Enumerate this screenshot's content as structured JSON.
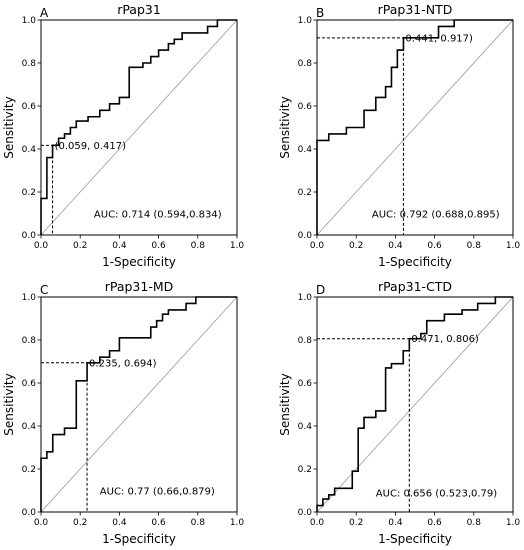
{
  "chart_data": [
    {
      "type": "line",
      "panel": "A",
      "title": "rPap31",
      "xlabel": "1-Specificity",
      "ylabel": "Sensitivity",
      "xlim": [
        0,
        1
      ],
      "ylim": [
        0,
        1
      ],
      "ticks": [
        "0.0",
        "0.2",
        "0.4",
        "0.6",
        "0.8",
        "1.0"
      ],
      "cutoff": {
        "x": 0.059,
        "y": 0.417,
        "label": "(0.059, 0.417)"
      },
      "auc_label": "AUC: 0.714 (0.594,0.834)",
      "series": [
        {
          "x": [
            0,
            0,
            0.03,
            0.03,
            0.059,
            0.059,
            0.09,
            0.09,
            0.12,
            0.12,
            0.15,
            0.15,
            0.18,
            0.18,
            0.24,
            0.24,
            0.3,
            0.3,
            0.35,
            0.35,
            0.4,
            0.4,
            0.45,
            0.45,
            0.52,
            0.52,
            0.56,
            0.56,
            0.6,
            0.6,
            0.65,
            0.65,
            0.68,
            0.68,
            0.72,
            0.72,
            0.85,
            0.85,
            0.9,
            0.9,
            1.0
          ],
          "y": [
            0,
            0.17,
            0.17,
            0.36,
            0.36,
            0.417,
            0.417,
            0.45,
            0.45,
            0.47,
            0.47,
            0.5,
            0.5,
            0.53,
            0.53,
            0.55,
            0.55,
            0.58,
            0.58,
            0.61,
            0.61,
            0.64,
            0.64,
            0.78,
            0.78,
            0.8,
            0.8,
            0.83,
            0.83,
            0.86,
            0.86,
            0.89,
            0.89,
            0.91,
            0.91,
            0.94,
            0.94,
            0.97,
            0.97,
            1.0,
            1.0
          ]
        }
      ]
    },
    {
      "type": "line",
      "panel": "B",
      "title": "rPap31-NTD",
      "xlabel": "1-Specificity",
      "ylabel": "Sensitivity",
      "xlim": [
        0,
        1
      ],
      "ylim": [
        0,
        1
      ],
      "ticks": [
        "0.0",
        "0.2",
        "0.4",
        "0.6",
        "0.8",
        "1.0"
      ],
      "cutoff": {
        "x": 0.441,
        "y": 0.917,
        "label": "0.441, 0.917)"
      },
      "auc_label": "AUC: 0.792 (0.688,0.895)",
      "series": [
        {
          "x": [
            0,
            0,
            0.06,
            0.06,
            0.15,
            0.15,
            0.24,
            0.24,
            0.3,
            0.3,
            0.35,
            0.35,
            0.38,
            0.38,
            0.41,
            0.41,
            0.441,
            0.441,
            0.62,
            0.62,
            0.7,
            0.7,
            1.0
          ],
          "y": [
            0,
            0.44,
            0.44,
            0.47,
            0.47,
            0.5,
            0.5,
            0.58,
            0.58,
            0.64,
            0.64,
            0.69,
            0.69,
            0.78,
            0.78,
            0.86,
            0.86,
            0.917,
            0.917,
            0.97,
            0.97,
            1.0,
            1.0
          ]
        }
      ]
    },
    {
      "type": "line",
      "panel": "C",
      "title": "rPap31-MD",
      "xlabel": "1-Specificity",
      "ylabel": "Sensitivity",
      "xlim": [
        0,
        1
      ],
      "ylim": [
        0,
        1
      ],
      "ticks": [
        "0.0",
        "0.2",
        "0.4",
        "0.6",
        "0.8",
        "1.0"
      ],
      "cutoff": {
        "x": 0.235,
        "y": 0.694,
        "label": "0.235, 0.694)"
      },
      "auc_label": "AUC: 0.77 (0.66,0.879)",
      "series": [
        {
          "x": [
            0,
            0,
            0.03,
            0.03,
            0.06,
            0.06,
            0.12,
            0.12,
            0.18,
            0.18,
            0.235,
            0.235,
            0.3,
            0.3,
            0.35,
            0.35,
            0.4,
            0.4,
            0.56,
            0.56,
            0.59,
            0.59,
            0.62,
            0.62,
            0.65,
            0.65,
            0.74,
            0.74,
            0.79,
            0.79,
            1.0
          ],
          "y": [
            0,
            0.25,
            0.25,
            0.28,
            0.28,
            0.36,
            0.36,
            0.39,
            0.39,
            0.61,
            0.61,
            0.694,
            0.694,
            0.72,
            0.72,
            0.75,
            0.75,
            0.81,
            0.81,
            0.86,
            0.86,
            0.89,
            0.89,
            0.92,
            0.92,
            0.94,
            0.94,
            0.97,
            0.97,
            1.0,
            1.0
          ]
        }
      ]
    },
    {
      "type": "line",
      "panel": "D",
      "title": "rPap31-CTD",
      "xlabel": "1-Specificity",
      "ylabel": "Sensitivity",
      "xlim": [
        0,
        1
      ],
      "ylim": [
        0,
        1
      ],
      "ticks": [
        "0.0",
        "0.2",
        "0.4",
        "0.6",
        "0.8",
        "1.0"
      ],
      "cutoff": {
        "x": 0.471,
        "y": 0.806,
        "label": "0.471, 0.806)"
      },
      "auc_label": "AUC: 0.656 (0.523,0.79)",
      "series": [
        {
          "x": [
            0,
            0,
            0.03,
            0.03,
            0.06,
            0.06,
            0.09,
            0.09,
            0.12,
            0.12,
            0.18,
            0.18,
            0.21,
            0.21,
            0.24,
            0.24,
            0.3,
            0.3,
            0.35,
            0.35,
            0.38,
            0.38,
            0.44,
            0.44,
            0.471,
            0.471,
            0.53,
            0.53,
            0.56,
            0.56,
            0.65,
            0.65,
            0.74,
            0.74,
            0.82,
            0.82,
            0.91,
            0.91,
            1.0
          ],
          "y": [
            0,
            0.03,
            0.03,
            0.06,
            0.06,
            0.08,
            0.08,
            0.11,
            0.11,
            0.11,
            0.11,
            0.19,
            0.19,
            0.39,
            0.39,
            0.44,
            0.44,
            0.47,
            0.47,
            0.67,
            0.67,
            0.69,
            0.69,
            0.75,
            0.75,
            0.806,
            0.806,
            0.83,
            0.83,
            0.89,
            0.89,
            0.92,
            0.92,
            0.94,
            0.94,
            0.97,
            0.97,
            1.0,
            1.0
          ]
        }
      ]
    }
  ]
}
